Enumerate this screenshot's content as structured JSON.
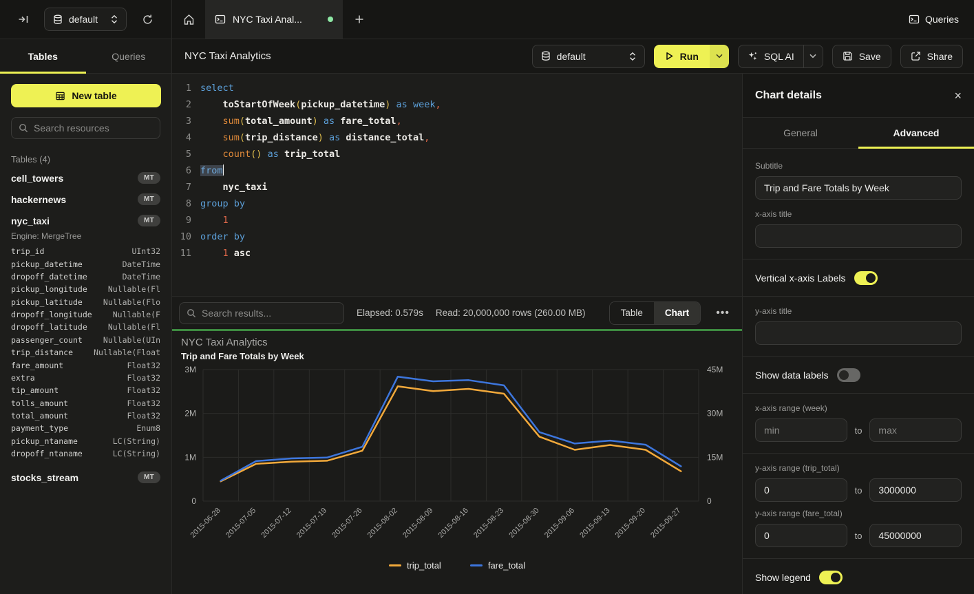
{
  "topbar": {
    "database_select": "default",
    "tab_title": "NYC Taxi Anal...",
    "queries_label": "Queries"
  },
  "sidebar": {
    "tabs": [
      "Tables",
      "Queries"
    ],
    "new_table_label": "New table",
    "search_placeholder": "Search resources",
    "section_label": "Tables (4)",
    "tables": [
      {
        "name": "cell_towers",
        "badge": "MT"
      },
      {
        "name": "hackernews",
        "badge": "MT"
      },
      {
        "name": "nyc_taxi",
        "badge": "MT",
        "engine": "Engine: MergeTree",
        "columns": [
          {
            "name": "trip_id",
            "type": "UInt32"
          },
          {
            "name": "pickup_datetime",
            "type": "DateTime"
          },
          {
            "name": "dropoff_datetime",
            "type": "DateTime"
          },
          {
            "name": "pickup_longitude",
            "type": "Nullable(Fl"
          },
          {
            "name": "pickup_latitude",
            "type": "Nullable(Flo"
          },
          {
            "name": "dropoff_longitude",
            "type": "Nullable(F"
          },
          {
            "name": "dropoff_latitude",
            "type": "Nullable(Fl"
          },
          {
            "name": "passenger_count",
            "type": "Nullable(UIn"
          },
          {
            "name": "trip_distance",
            "type": "Nullable(Float"
          },
          {
            "name": "fare_amount",
            "type": "Float32"
          },
          {
            "name": "extra",
            "type": "Float32"
          },
          {
            "name": "tip_amount",
            "type": "Float32"
          },
          {
            "name": "tolls_amount",
            "type": "Float32"
          },
          {
            "name": "total_amount",
            "type": "Float32"
          },
          {
            "name": "payment_type",
            "type": "Enum8"
          },
          {
            "name": "pickup_ntaname",
            "type": "LC(String)"
          },
          {
            "name": "dropoff_ntaname",
            "type": "LC(String)"
          }
        ]
      },
      {
        "name": "stocks_stream",
        "badge": "MT"
      }
    ]
  },
  "toolbar": {
    "title": "NYC Taxi Analytics",
    "database_select": "default",
    "run_label": "Run",
    "sql_ai_label": "SQL AI",
    "save_label": "Save",
    "share_label": "Share"
  },
  "editor": {
    "lines": [
      {
        "num": "1",
        "tokens": [
          [
            "select",
            "kw"
          ]
        ]
      },
      {
        "num": "2",
        "tokens": [
          [
            "    ",
            ""
          ],
          [
            "toStartOfWeek",
            "idb"
          ],
          [
            "(",
            "pa"
          ],
          [
            "pickup_datetime",
            "idb"
          ],
          [
            ")",
            "pa"
          ],
          [
            " ",
            ""
          ],
          [
            "as",
            "kw"
          ],
          [
            " ",
            ""
          ],
          [
            "week",
            "kw"
          ],
          [
            ",",
            "nu"
          ]
        ]
      },
      {
        "num": "3",
        "tokens": [
          [
            "    ",
            ""
          ],
          [
            "sum",
            "fn"
          ],
          [
            "(",
            "pa"
          ],
          [
            "total_amount",
            "idb"
          ],
          [
            ")",
            "pa"
          ],
          [
            " ",
            ""
          ],
          [
            "as",
            "kw"
          ],
          [
            " ",
            ""
          ],
          [
            "fare_total",
            "idb"
          ],
          [
            ",",
            "nu"
          ]
        ]
      },
      {
        "num": "4",
        "tokens": [
          [
            "    ",
            ""
          ],
          [
            "sum",
            "fn"
          ],
          [
            "(",
            "pa"
          ],
          [
            "trip_distance",
            "idb"
          ],
          [
            ")",
            "pa"
          ],
          [
            " ",
            ""
          ],
          [
            "as",
            "kw"
          ],
          [
            " ",
            ""
          ],
          [
            "distance_total",
            "idb"
          ],
          [
            ",",
            "nu"
          ]
        ]
      },
      {
        "num": "5",
        "tokens": [
          [
            "    ",
            ""
          ],
          [
            "count",
            "fn"
          ],
          [
            "()",
            "pa"
          ],
          [
            " ",
            ""
          ],
          [
            "as",
            "kw"
          ],
          [
            " ",
            ""
          ],
          [
            "trip_total",
            "idb"
          ]
        ]
      },
      {
        "num": "6",
        "tokens": [
          [
            "from",
            "kwsel"
          ]
        ],
        "cursor": true
      },
      {
        "num": "7",
        "tokens": [
          [
            "    ",
            ""
          ],
          [
            "nyc_taxi",
            "idb"
          ]
        ]
      },
      {
        "num": "8",
        "tokens": [
          [
            "group by",
            "kw"
          ]
        ]
      },
      {
        "num": "9",
        "tokens": [
          [
            "    ",
            ""
          ],
          [
            "1",
            "nu"
          ]
        ]
      },
      {
        "num": "10",
        "tokens": [
          [
            "order by",
            "kw"
          ]
        ]
      },
      {
        "num": "11",
        "tokens": [
          [
            "    ",
            ""
          ],
          [
            "1",
            "nu"
          ],
          [
            " ",
            ""
          ],
          [
            "asc",
            "idb"
          ]
        ]
      }
    ]
  },
  "results": {
    "search_placeholder": "Search results...",
    "elapsed": "Elapsed: 0.579s",
    "read": "Read: 20,000,000 rows (260.00 MB)",
    "views": [
      "Table",
      "Chart"
    ],
    "active_view": "Chart",
    "more_label": "..."
  },
  "chart_data": {
    "type": "line",
    "title": "NYC Taxi Analytics",
    "subtitle": "Trip and Fare Totals by Week",
    "categories": [
      "2015-06-28",
      "2015-07-05",
      "2015-07-12",
      "2015-07-19",
      "2015-07-26",
      "2015-08-02",
      "2015-08-09",
      "2015-08-16",
      "2015-08-23",
      "2015-08-30",
      "2015-09-06",
      "2015-09-13",
      "2015-09-20",
      "2015-09-27"
    ],
    "series": [
      {
        "name": "trip_total",
        "color": "#f2a93b",
        "axis": "left",
        "values": [
          450000,
          850000,
          900000,
          920000,
          1150000,
          2620000,
          2510000,
          2560000,
          2450000,
          1470000,
          1170000,
          1280000,
          1170000,
          680000
        ]
      },
      {
        "name": "fare_total",
        "color": "#3d76dd",
        "axis": "right",
        "values": [
          7000000,
          13700000,
          14600000,
          14900000,
          18600000,
          42600000,
          41000000,
          41400000,
          39600000,
          23600000,
          19700000,
          20700000,
          19300000,
          11900000
        ]
      }
    ],
    "left_axis": {
      "max": 3000000,
      "ticks": [
        "3M",
        "2M",
        "1M",
        "0"
      ]
    },
    "right_axis": {
      "max": 45000000,
      "ticks": [
        "45M",
        "30M",
        "15M",
        "0"
      ]
    },
    "grid": true,
    "legend_position": "bottom",
    "x_labels_rotated": true
  },
  "panel": {
    "title": "Chart details",
    "tabs": [
      "General",
      "Advanced"
    ],
    "active_tab": "Advanced",
    "subtitle_label": "Subtitle",
    "subtitle_value": "Trip and Fare Totals by Week",
    "xaxis_title_label": "x-axis title",
    "xaxis_title_value": "",
    "vertical_labels_label": "Vertical x-axis Labels",
    "vertical_labels_on": true,
    "yaxis_title_label": "y-axis title",
    "yaxis_title_value": "",
    "data_labels_label": "Show data labels",
    "data_labels_on": false,
    "xrange_label": "x-axis range (week)",
    "min_placeholder": "min",
    "max_placeholder": "max",
    "to_label": "to",
    "yrange_trip_label": "y-axis range (trip_total)",
    "trip_min": "0",
    "trip_max": "3000000",
    "yrange_fare_label": "y-axis range (fare_total)",
    "fare_min": "0",
    "fare_max": "45000000",
    "legend_label": "Show legend",
    "legend_on": true
  },
  "icons": {
    "collapse-sidebar": "arrow-to-bar",
    "database": "cylinder",
    "refresh": "circular-arrow",
    "home": "house",
    "console-tab": "terminal-square",
    "unsaved-dot": "green-dot",
    "new-tab": "plus",
    "search": "magnifier",
    "run": "play-triangle",
    "sql-ai": "sparkle",
    "save": "floppy",
    "share": "box-arrow",
    "close": "x",
    "more": "ellipsis"
  },
  "colors": {
    "accent": "#eef154",
    "run_green_divider": "#3d8b40",
    "unsaved_dot": "#8ee8a5",
    "trip_total": "#f2a93b",
    "fare_total": "#3d76dd"
  }
}
